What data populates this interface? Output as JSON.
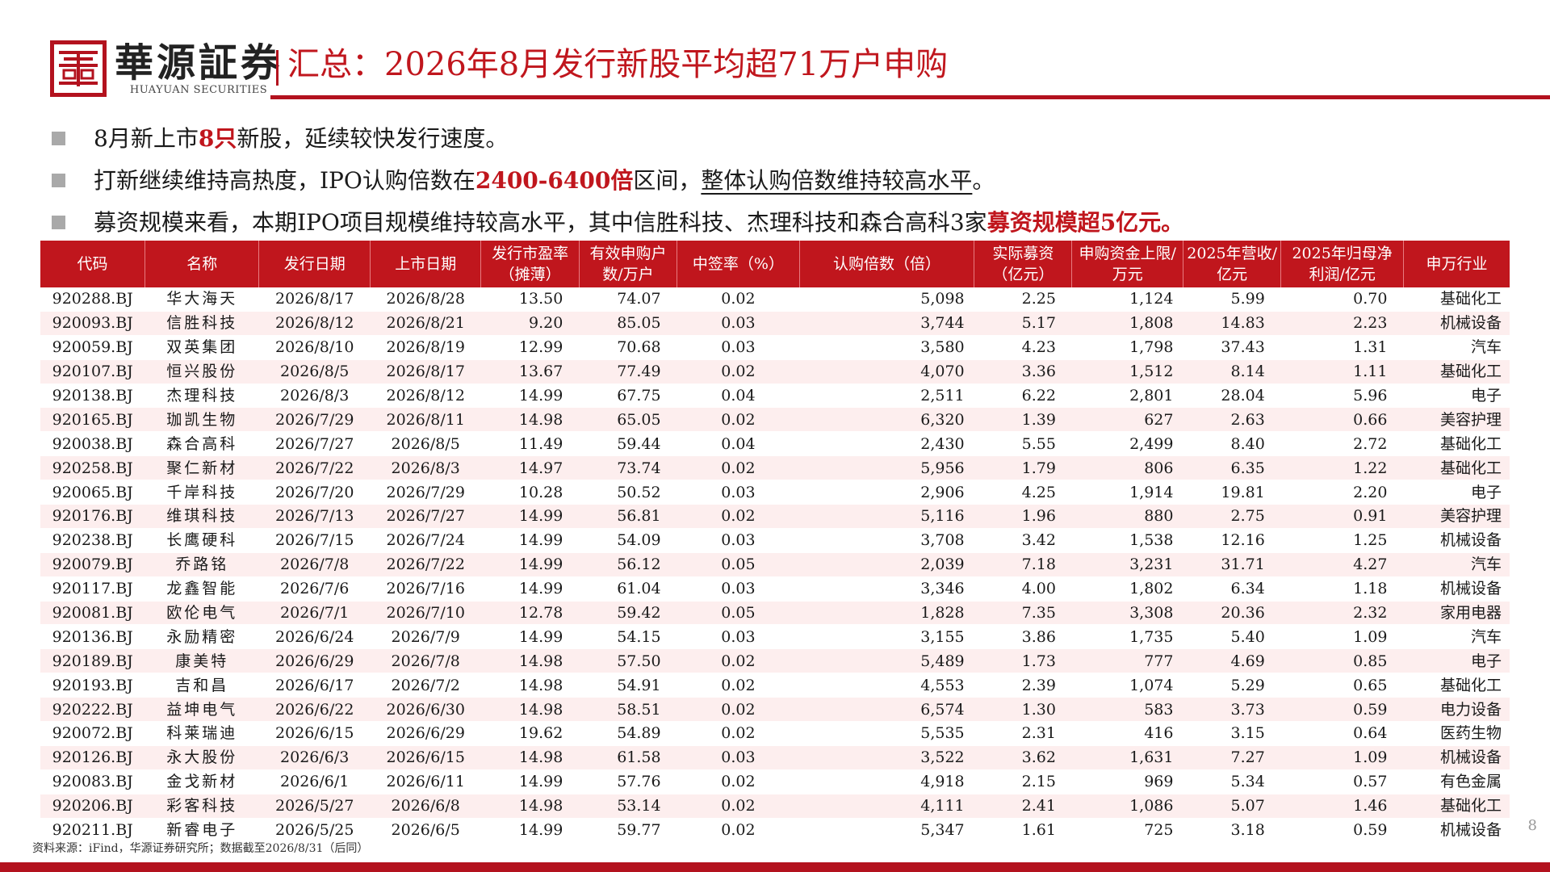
{
  "header": {
    "brand_cn": "華源証券",
    "brand_en": "HUAYUAN SECURITIES",
    "title": "汇总：2026年8月发行新股平均超71万户申购"
  },
  "bullets": [
    {
      "a": "8月新上市",
      "b": "8只",
      "c": "新股，延续较快发行速度。"
    },
    {
      "a": "打新继续维持高热度，IPO认购倍数在",
      "b": "2400-6400倍",
      "c": "区间，",
      "d": "整体认购倍数维持较高水平",
      "e": "。"
    },
    {
      "a": "募资规模来看，本期IPO项目规模维持较高水平，其中信胜科技、杰理科技和森合高科3家",
      "b": "募资规模超5亿元。"
    }
  ],
  "table": {
    "headers": [
      "代码",
      "名称",
      "发行日期",
      "上市日期",
      "发行市盈率（摊薄）",
      "有效申购户数/万户",
      "中签率（%）",
      "认购倍数（倍）",
      "实际募资（亿元）",
      "申购资金上限/万元",
      "2025年营收/亿元",
      "2025年归母净利润/亿元",
      "申万行业"
    ],
    "rows": [
      [
        "920288.BJ",
        "华大海天",
        "2026/8/17",
        "2026/8/28",
        "13.50",
        "74.07",
        "0.02",
        "5,098",
        "2.25",
        "1,124",
        "5.99",
        "0.70",
        "基础化工"
      ],
      [
        "920093.BJ",
        "信胜科技",
        "2026/8/12",
        "2026/8/21",
        "9.20",
        "85.05",
        "0.03",
        "3,744",
        "5.17",
        "1,808",
        "14.83",
        "2.23",
        "机械设备"
      ],
      [
        "920059.BJ",
        "双英集团",
        "2026/8/10",
        "2026/8/19",
        "12.99",
        "70.68",
        "0.03",
        "3,580",
        "4.23",
        "1,798",
        "37.43",
        "1.31",
        "汽车"
      ],
      [
        "920107.BJ",
        "恒兴股份",
        "2026/8/5",
        "2026/8/17",
        "13.67",
        "77.49",
        "0.02",
        "4,070",
        "3.36",
        "1,512",
        "8.14",
        "1.11",
        "基础化工"
      ],
      [
        "920138.BJ",
        "杰理科技",
        "2026/8/3",
        "2026/8/12",
        "14.99",
        "67.75",
        "0.04",
        "2,511",
        "6.22",
        "2,801",
        "28.04",
        "5.96",
        "电子"
      ],
      [
        "920165.BJ",
        "珈凯生物",
        "2026/7/29",
        "2026/8/11",
        "14.98",
        "65.05",
        "0.02",
        "6,320",
        "1.39",
        "627",
        "2.63",
        "0.66",
        "美容护理"
      ],
      [
        "920038.BJ",
        "森合高科",
        "2026/7/27",
        "2026/8/5",
        "11.49",
        "59.44",
        "0.04",
        "2,430",
        "5.55",
        "2,499",
        "8.40",
        "2.72",
        "基础化工"
      ],
      [
        "920258.BJ",
        "聚仁新材",
        "2026/7/22",
        "2026/8/3",
        "14.97",
        "73.74",
        "0.02",
        "5,956",
        "1.79",
        "806",
        "6.35",
        "1.22",
        "基础化工"
      ],
      [
        "920065.BJ",
        "千岸科技",
        "2026/7/20",
        "2026/7/29",
        "10.28",
        "50.52",
        "0.03",
        "2,906",
        "4.25",
        "1,914",
        "19.81",
        "2.20",
        "电子"
      ],
      [
        "920176.BJ",
        "维琪科技",
        "2026/7/13",
        "2026/7/27",
        "14.99",
        "56.81",
        "0.02",
        "5,116",
        "1.96",
        "880",
        "2.75",
        "0.91",
        "美容护理"
      ],
      [
        "920238.BJ",
        "长鹰硬科",
        "2026/7/15",
        "2026/7/24",
        "14.99",
        "54.09",
        "0.03",
        "3,708",
        "3.42",
        "1,538",
        "12.16",
        "1.25",
        "机械设备"
      ],
      [
        "920079.BJ",
        "乔路铭",
        "2026/7/8",
        "2026/7/22",
        "14.99",
        "56.12",
        "0.05",
        "2,039",
        "7.18",
        "3,231",
        "31.71",
        "4.27",
        "汽车"
      ],
      [
        "920117.BJ",
        "龙鑫智能",
        "2026/7/6",
        "2026/7/16",
        "14.99",
        "61.04",
        "0.03",
        "3,346",
        "4.00",
        "1,802",
        "6.34",
        "1.18",
        "机械设备"
      ],
      [
        "920081.BJ",
        "欧伦电气",
        "2026/7/1",
        "2026/7/10",
        "12.78",
        "59.42",
        "0.05",
        "1,828",
        "7.35",
        "3,308",
        "20.36",
        "2.32",
        "家用电器"
      ],
      [
        "920136.BJ",
        "永励精密",
        "2026/6/24",
        "2026/7/9",
        "14.99",
        "54.15",
        "0.03",
        "3,155",
        "3.86",
        "1,735",
        "5.40",
        "1.09",
        "汽车"
      ],
      [
        "920189.BJ",
        "康美特",
        "2026/6/29",
        "2026/7/8",
        "14.98",
        "57.50",
        "0.02",
        "5,489",
        "1.73",
        "777",
        "4.69",
        "0.85",
        "电子"
      ],
      [
        "920193.BJ",
        "吉和昌",
        "2026/6/17",
        "2026/7/2",
        "14.98",
        "54.91",
        "0.02",
        "4,553",
        "2.39",
        "1,074",
        "5.29",
        "0.65",
        "基础化工"
      ],
      [
        "920222.BJ",
        "益坤电气",
        "2026/6/22",
        "2026/6/30",
        "14.98",
        "58.51",
        "0.02",
        "6,574",
        "1.30",
        "583",
        "3.73",
        "0.59",
        "电力设备"
      ],
      [
        "920072.BJ",
        "科莱瑞迪",
        "2026/6/15",
        "2026/6/29",
        "19.62",
        "54.89",
        "0.02",
        "5,535",
        "2.31",
        "416",
        "3.15",
        "0.64",
        "医药生物"
      ],
      [
        "920126.BJ",
        "永大股份",
        "2026/6/3",
        "2026/6/15",
        "14.98",
        "61.58",
        "0.03",
        "3,522",
        "3.62",
        "1,631",
        "7.27",
        "1.09",
        "机械设备"
      ],
      [
        "920083.BJ",
        "金戈新材",
        "2026/6/1",
        "2026/6/11",
        "14.99",
        "57.76",
        "0.02",
        "4,918",
        "2.15",
        "969",
        "5.34",
        "0.57",
        "有色金属"
      ],
      [
        "920206.BJ",
        "彩客科技",
        "2026/5/27",
        "2026/6/8",
        "14.98",
        "53.14",
        "0.02",
        "4,111",
        "2.41",
        "1,086",
        "5.07",
        "1.46",
        "基础化工"
      ],
      [
        "920211.BJ",
        "新睿电子",
        "2026/5/25",
        "2026/6/5",
        "14.99",
        "59.77",
        "0.02",
        "5,347",
        "1.61",
        "725",
        "3.18",
        "0.59",
        "机械设备"
      ]
    ]
  },
  "footer": {
    "source": "资料来源：iFind，华源证券研究所；数据截至2026/8/31（后同）",
    "page": "8"
  },
  "colors": {
    "accent": "#c0161d",
    "row_alt": "#fdeeee"
  }
}
